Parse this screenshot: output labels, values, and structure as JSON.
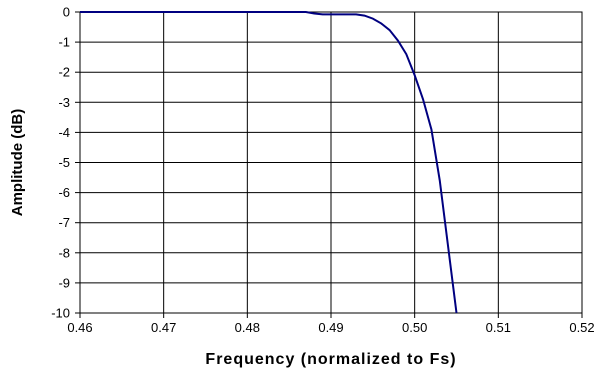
{
  "chart_data": {
    "type": "line",
    "title": "",
    "xlabel": "Frequency (normalized to Fs)",
    "ylabel": "Amplitude (dB)",
    "xlim": [
      0.46,
      0.52
    ],
    "ylim": [
      -10,
      0
    ],
    "x_ticks": [
      "0.46",
      "0.47",
      "0.48",
      "0.49",
      "0.50",
      "0.51",
      "0.52"
    ],
    "y_ticks": [
      "0",
      "-1",
      "-2",
      "-3",
      "-4",
      "-5",
      "-6",
      "-7",
      "-8",
      "-9",
      "-10"
    ],
    "grid": true,
    "legend": "none",
    "line_color": "#000080",
    "series": [
      {
        "x": [
          0.46,
          0.487,
          0.488,
          0.489,
          0.49,
          0.493,
          0.494,
          0.495,
          0.496,
          0.497,
          0.498,
          0.499,
          0.5,
          0.501,
          0.502,
          0.503,
          0.504,
          0.505
        ],
        "y": [
          0.0,
          0.0,
          -0.05,
          -0.08,
          -0.08,
          -0.08,
          -0.12,
          -0.22,
          -0.38,
          -0.6,
          -0.95,
          -1.4,
          -2.1,
          -2.9,
          -3.9,
          -5.6,
          -7.8,
          -10.0
        ]
      }
    ]
  }
}
